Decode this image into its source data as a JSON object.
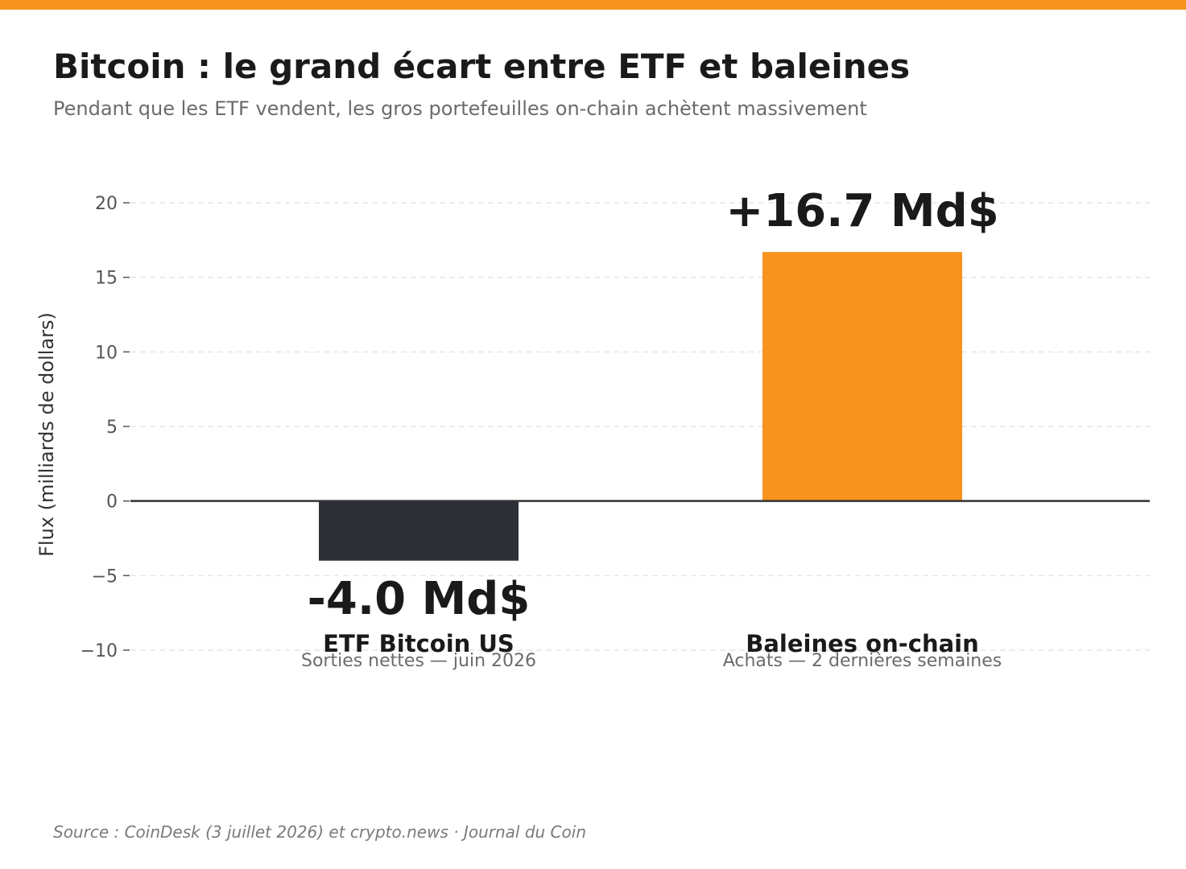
{
  "colors": {
    "accent": "#f7931e",
    "etf_bar": "#2d3037",
    "whales_bar": "#f7931e",
    "grid": "#e6e6e6",
    "zero_line": "#333333"
  },
  "header": {
    "title": "Bitcoin : le grand écart entre ETF et baleines",
    "subtitle": "Pendant que les ETF vendent, les gros portefeuilles on-chain achètent massivement"
  },
  "footer": {
    "source": "Source : CoinDesk (3 juillet 2026) et crypto.news · Journal du Coin"
  },
  "chart_data": {
    "type": "bar",
    "title": "Bitcoin : le grand écart entre ETF et baleines",
    "subtitle": "Pendant que les ETF vendent, les gros portefeuilles on-chain achètent massivement",
    "ylabel": "Flux (milliards de dollars)",
    "ylim": [
      -10,
      20
    ],
    "yticks": [
      -10,
      -5,
      0,
      5,
      10,
      15,
      20
    ],
    "ytick_labels": [
      "−10",
      "−5",
      "0",
      "5",
      "10",
      "15",
      "20"
    ],
    "grid": true,
    "categories": [
      "ETF Bitcoin US",
      "Baleines on-chain"
    ],
    "category_subtitles": [
      "Sorties nettes — juin 2026",
      "Achats — 2 dernières semaines"
    ],
    "values": [
      -4.0,
      16.7
    ],
    "value_labels": [
      "-4.0 Md$",
      "+16.7 Md$"
    ]
  }
}
